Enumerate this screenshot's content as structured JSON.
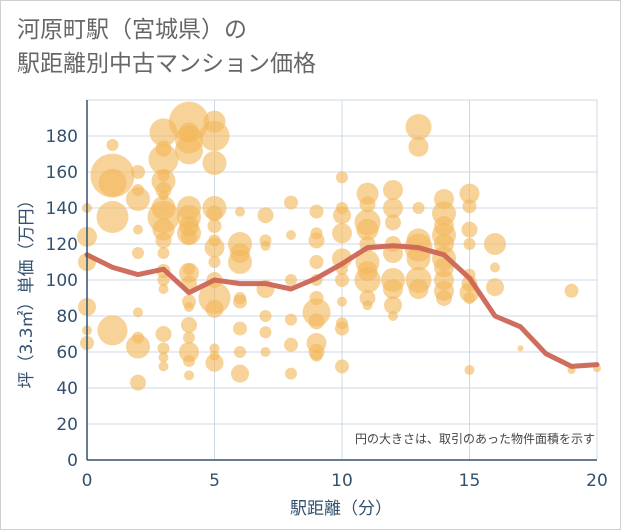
{
  "title": {
    "line1": "河原町駅（宮城県）の",
    "line2": "駅距離別中古マンション価格"
  },
  "chart_data": {
    "type": "scatter",
    "xlabel": "駅距離（分）",
    "ylabel": "坪（3.3㎡）単価（万円）",
    "xlim": [
      0,
      20
    ],
    "ylim": [
      0,
      200
    ],
    "xticks": [
      0,
      5,
      10,
      15,
      20
    ],
    "yticks": [
      0,
      20,
      40,
      60,
      80,
      100,
      120,
      140,
      160,
      180
    ],
    "grid": true,
    "note": "円の大きさは、取引のあった物件面積を示す",
    "colors": {
      "bubble": "#f2b85a",
      "line": "#cc6655",
      "grid": "#cfd9e4",
      "axis": "#33516e"
    },
    "series": [
      {
        "type": "line",
        "x": [
          0,
          1,
          2,
          3,
          4,
          5,
          6,
          7,
          8,
          9,
          10,
          11,
          12,
          13,
          14,
          15,
          16,
          17,
          18,
          19,
          20
        ],
        "values": [
          114,
          107,
          103,
          106,
          93,
          100,
          98,
          98,
          95,
          101,
          109,
          118,
          119,
          118,
          114,
          101,
          80,
          74,
          59,
          52,
          53
        ]
      },
      {
        "type": "bubble",
        "points": [
          [
            0,
            124,
            10
          ],
          [
            0,
            110,
            9
          ],
          [
            0,
            85,
            9
          ],
          [
            0,
            65,
            7
          ],
          [
            0,
            72,
            5
          ],
          [
            0,
            140,
            5
          ],
          [
            1,
            158,
            22
          ],
          [
            1,
            154,
            14
          ],
          [
            1,
            135,
            16
          ],
          [
            1,
            72,
            15
          ],
          [
            1,
            175,
            6
          ],
          [
            2,
            145,
            12
          ],
          [
            2,
            160,
            7
          ],
          [
            2,
            115,
            6
          ],
          [
            2,
            63,
            12
          ],
          [
            2,
            43,
            8
          ],
          [
            2,
            128,
            5
          ],
          [
            2,
            82,
            5
          ],
          [
            2,
            68,
            6
          ],
          [
            2,
            150,
            6
          ],
          [
            3,
            182,
            14
          ],
          [
            3,
            173,
            8
          ],
          [
            3,
            167,
            15
          ],
          [
            3,
            155,
            12
          ],
          [
            3,
            150,
            8
          ],
          [
            3,
            140,
            12
          ],
          [
            3,
            135,
            16
          ],
          [
            3,
            128,
            11
          ],
          [
            3,
            122,
            8
          ],
          [
            3,
            115,
            6
          ],
          [
            3,
            105,
            7
          ],
          [
            3,
            70,
            8
          ],
          [
            3,
            62,
            6
          ],
          [
            3,
            57,
            5
          ],
          [
            3,
            52,
            5
          ],
          [
            3,
            95,
            5
          ],
          [
            3,
            100,
            6
          ],
          [
            3,
            158,
            6
          ],
          [
            3,
            147,
            5
          ],
          [
            4,
            188,
            20
          ],
          [
            4,
            178,
            14
          ],
          [
            4,
            172,
            14
          ],
          [
            4,
            182,
            10
          ],
          [
            4,
            140,
            12
          ],
          [
            4,
            135,
            12
          ],
          [
            4,
            130,
            10
          ],
          [
            4,
            126,
            12
          ],
          [
            4,
            124,
            8
          ],
          [
            4,
            104,
            10
          ],
          [
            4,
            98,
            8
          ],
          [
            4,
            106,
            6
          ],
          [
            4,
            88,
            7
          ],
          [
            4,
            85,
            5
          ],
          [
            4,
            75,
            8
          ],
          [
            4,
            68,
            6
          ],
          [
            4,
            60,
            10
          ],
          [
            4,
            55,
            6
          ],
          [
            4,
            47,
            5
          ],
          [
            5,
            188,
            11
          ],
          [
            5,
            180,
            15
          ],
          [
            5,
            165,
            12
          ],
          [
            5,
            140,
            12
          ],
          [
            5,
            137,
            8
          ],
          [
            5,
            130,
            7
          ],
          [
            5,
            122,
            6
          ],
          [
            5,
            118,
            10
          ],
          [
            5,
            110,
            6
          ],
          [
            5,
            100,
            8
          ],
          [
            5,
            90,
            16
          ],
          [
            5,
            84,
            9
          ],
          [
            5,
            62,
            5
          ],
          [
            5,
            58,
            5
          ],
          [
            5,
            54,
            9
          ],
          [
            6,
            138,
            5
          ],
          [
            6,
            120,
            12
          ],
          [
            6,
            115,
            10
          ],
          [
            6,
            110,
            12
          ],
          [
            6,
            90,
            6
          ],
          [
            6,
            88,
            7
          ],
          [
            6,
            73,
            7
          ],
          [
            6,
            60,
            6
          ],
          [
            6,
            48,
            9
          ],
          [
            7,
            136,
            8
          ],
          [
            7,
            122,
            6
          ],
          [
            7,
            119,
            5
          ],
          [
            7,
            95,
            9
          ],
          [
            7,
            80,
            6
          ],
          [
            7,
            71,
            6
          ],
          [
            7,
            60,
            5
          ],
          [
            8,
            143,
            7
          ],
          [
            8,
            125,
            5
          ],
          [
            8,
            100,
            6
          ],
          [
            8,
            78,
            6
          ],
          [
            8,
            64,
            7
          ],
          [
            8,
            48,
            6
          ],
          [
            9,
            138,
            7
          ],
          [
            9,
            126,
            6
          ],
          [
            9,
            122,
            8
          ],
          [
            9,
            110,
            7
          ],
          [
            9,
            100,
            6
          ],
          [
            9,
            90,
            7
          ],
          [
            9,
            82,
            14
          ],
          [
            9,
            77,
            8
          ],
          [
            9,
            65,
            10
          ],
          [
            9,
            60,
            8
          ],
          [
            9,
            58,
            6
          ],
          [
            10,
            157,
            6
          ],
          [
            10,
            140,
            6
          ],
          [
            10,
            136,
            9
          ],
          [
            10,
            126,
            10
          ],
          [
            10,
            112,
            10
          ],
          [
            10,
            106,
            6
          ],
          [
            10,
            100,
            7
          ],
          [
            10,
            88,
            5
          ],
          [
            10,
            76,
            6
          ],
          [
            10,
            73,
            7
          ],
          [
            10,
            52,
            7
          ],
          [
            11,
            148,
            11
          ],
          [
            11,
            142,
            8
          ],
          [
            11,
            132,
            13
          ],
          [
            11,
            128,
            11
          ],
          [
            11,
            120,
            8
          ],
          [
            11,
            110,
            12
          ],
          [
            11,
            105,
            10
          ],
          [
            11,
            100,
            13
          ],
          [
            11,
            90,
            8
          ],
          [
            11,
            86,
            5
          ],
          [
            12,
            150,
            10
          ],
          [
            12,
            140,
            10
          ],
          [
            12,
            132,
            8
          ],
          [
            12,
            120,
            8
          ],
          [
            12,
            115,
            10
          ],
          [
            12,
            100,
            12
          ],
          [
            12,
            95,
            10
          ],
          [
            12,
            86,
            9
          ],
          [
            12,
            80,
            5
          ],
          [
            13,
            185,
            13
          ],
          [
            13,
            174,
            10
          ],
          [
            13,
            140,
            6
          ],
          [
            13,
            122,
            12
          ],
          [
            13,
            118,
            14
          ],
          [
            13,
            112,
            12
          ],
          [
            13,
            100,
            13
          ],
          [
            13,
            95,
            10
          ],
          [
            14,
            145,
            10
          ],
          [
            14,
            137,
            12
          ],
          [
            14,
            130,
            10
          ],
          [
            14,
            125,
            12
          ],
          [
            14,
            120,
            10
          ],
          [
            14,
            112,
            12
          ],
          [
            14,
            107,
            10
          ],
          [
            14,
            100,
            10
          ],
          [
            14,
            94,
            10
          ],
          [
            14,
            90,
            8
          ],
          [
            15,
            148,
            10
          ],
          [
            15,
            141,
            7
          ],
          [
            15,
            128,
            8
          ],
          [
            15,
            120,
            6
          ],
          [
            15,
            103,
            6
          ],
          [
            15,
            98,
            8
          ],
          [
            15,
            93,
            10
          ],
          [
            15,
            90,
            6
          ],
          [
            15,
            50,
            5
          ],
          [
            16,
            120,
            11
          ],
          [
            16,
            107,
            5
          ],
          [
            16,
            96,
            9
          ],
          [
            17,
            62,
            3
          ],
          [
            19,
            94,
            7
          ],
          [
            19,
            50,
            4
          ],
          [
            20,
            51,
            4
          ]
        ]
      }
    ]
  }
}
